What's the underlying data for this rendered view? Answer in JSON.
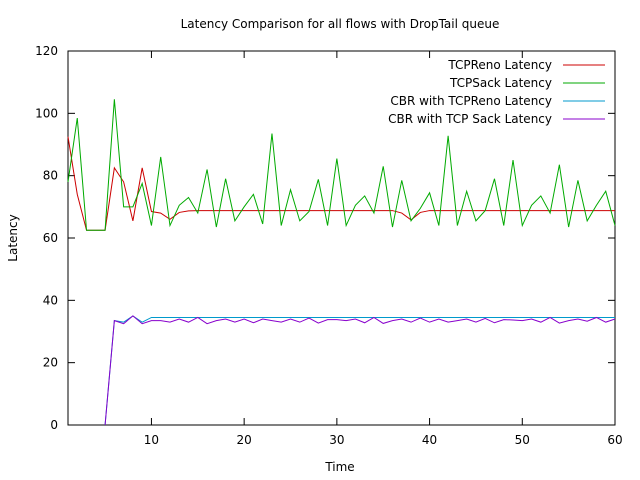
{
  "chart_data": {
    "type": "line",
    "title": "Latency Comparison for all flows with DropTail queue",
    "xlabel": "Time",
    "ylabel": "Latency",
    "xlim": [
      1,
      60
    ],
    "ylim": [
      0,
      120
    ],
    "xticks": [
      10,
      20,
      30,
      40,
      50,
      60
    ],
    "yticks": [
      0,
      20,
      40,
      60,
      80,
      100,
      120
    ],
    "grid": false,
    "legend_position": "top-right",
    "x": [
      1,
      2,
      3,
      4,
      5,
      6,
      7,
      8,
      9,
      10,
      11,
      12,
      13,
      14,
      15,
      16,
      17,
      18,
      19,
      20,
      21,
      22,
      23,
      24,
      25,
      26,
      27,
      28,
      29,
      30,
      31,
      32,
      33,
      34,
      35,
      36,
      37,
      38,
      39,
      40,
      41,
      42,
      43,
      44,
      45,
      46,
      47,
      48,
      49,
      50,
      51,
      52,
      53,
      54,
      55,
      56,
      57,
      58,
      59,
      60
    ],
    "series": [
      {
        "name": "TCPReno Latency",
        "color": "#cc0000",
        "values": [
          92.5,
          74,
          62.5,
          62.5,
          62.5,
          82.5,
          78,
          65.5,
          82.5,
          68.5,
          68,
          66,
          68.2,
          68.7,
          68.8,
          68.8,
          68.8,
          68.8,
          68.8,
          68.8,
          68.8,
          68.8,
          68.8,
          68.8,
          68.8,
          68.8,
          68.8,
          68.8,
          68.8,
          68.8,
          68.8,
          68.8,
          68.8,
          68.8,
          68.8,
          68.8,
          68,
          65.8,
          68.2,
          68.8,
          68.8,
          68.8,
          68.8,
          68.8,
          68.8,
          68.8,
          68.8,
          68.8,
          68.8,
          68.8,
          68.8,
          68.8,
          68.8,
          68.8,
          68.8,
          68.8,
          68.8,
          68.8,
          68.8,
          68.8
        ]
      },
      {
        "name": "TCPSack Latency",
        "color": "#00aa00",
        "values": [
          78,
          98.5,
          62.5,
          62.5,
          62.5,
          104.5,
          70,
          70,
          77.5,
          64,
          86,
          64,
          70.5,
          73,
          68,
          82,
          63.5,
          79,
          65.5,
          70,
          74,
          64.5,
          93.5,
          64,
          75.5,
          65.5,
          68.5,
          78.8,
          64,
          85.5,
          64,
          70.5,
          73.5,
          68,
          83,
          63.5,
          78.5,
          65.5,
          69.5,
          74.5,
          64,
          92.8,
          64,
          75,
          65.5,
          68.8,
          79,
          64,
          85,
          64,
          70.5,
          73.5,
          68,
          83.5,
          63.5,
          78.5,
          65.5,
          70.5,
          75,
          64
        ]
      },
      {
        "name": "CBR with TCPReno Latency",
        "color": "#0099cc",
        "values": [
          null,
          null,
          null,
          null,
          0,
          33.5,
          33,
          35,
          33,
          34.5,
          34.5,
          34.5,
          34.5,
          34.5,
          34.5,
          34.5,
          34.5,
          34.5,
          34.5,
          34.5,
          34.5,
          34.5,
          34.5,
          34.5,
          34.5,
          34.5,
          34.5,
          34.5,
          34.5,
          34.5,
          34.5,
          34.5,
          34.5,
          34.5,
          34.5,
          34.5,
          34.5,
          34.5,
          34.5,
          34.5,
          34.5,
          34.5,
          34.5,
          34.5,
          34.5,
          34.5,
          34.5,
          34.5,
          34.5,
          34.5,
          34.5,
          34.5,
          34.5,
          34.5,
          34.5,
          34.5,
          34.5,
          34.5,
          34.5,
          34.5
        ]
      },
      {
        "name": "CBR with TCP Sack Latency",
        "color": "#8800cc",
        "values": [
          null,
          null,
          null,
          null,
          0,
          33.5,
          32.5,
          35,
          32.5,
          33.5,
          33.5,
          33,
          34,
          33,
          34.5,
          32.5,
          33.5,
          34,
          33,
          34,
          32.8,
          34,
          33.5,
          33,
          34,
          33,
          34.3,
          32.7,
          33.8,
          33.8,
          33.5,
          34,
          32.8,
          34.5,
          32.6,
          33.5,
          34,
          33,
          34.3,
          33,
          34,
          33,
          33.5,
          34,
          33,
          34.2,
          32.8,
          33.8,
          33.7,
          33.5,
          34,
          33,
          34.5,
          32.7,
          33.5,
          34,
          33.3,
          34.5,
          33,
          34
        ]
      }
    ]
  }
}
